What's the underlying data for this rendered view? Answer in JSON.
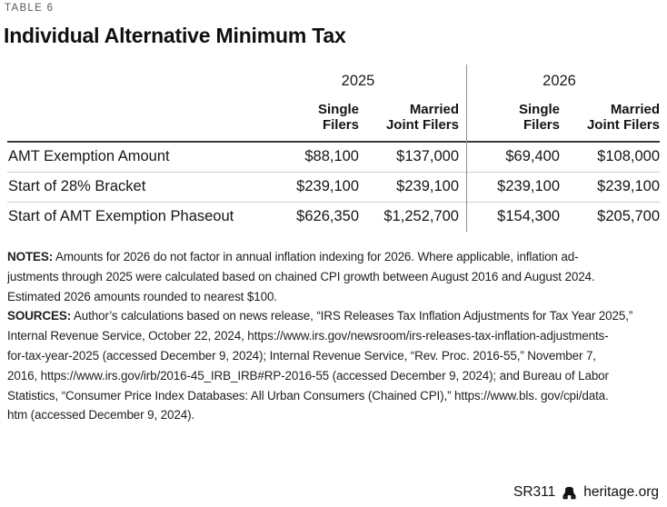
{
  "header": {
    "eyebrow": "TABLE 6",
    "title": "Individual Alternative Minimum Tax"
  },
  "table": {
    "years": [
      "2025",
      "2026"
    ],
    "sub_headers": [
      "Single\nFilers",
      "Married\nJoint Filers",
      "Single\nFilers",
      "Married\nJoint Filers"
    ],
    "rows": [
      {
        "label": "AMT Exemption Amount",
        "values": [
          "$88,100",
          "$137,000",
          "$69,400",
          "$108,000"
        ]
      },
      {
        "label": "Start of 28% Bracket",
        "values": [
          "$239,100",
          "$239,100",
          "$239,100",
          "$239,100"
        ]
      },
      {
        "label": "Start of AMT Exemption Phaseout",
        "values": [
          "$626,350",
          "$1,252,700",
          "$154,300",
          "$205,700"
        ]
      }
    ]
  },
  "chart_data": {
    "type": "table",
    "title": "Individual Alternative Minimum Tax",
    "columns": [
      "2025 Single Filers",
      "2025 Married Joint Filers",
      "2026 Single Filers",
      "2026 Married Joint Filers"
    ],
    "rows": [
      {
        "label": "AMT Exemption Amount",
        "values": [
          88100,
          137000,
          69400,
          108000
        ]
      },
      {
        "label": "Start of 28% Bracket",
        "values": [
          239100,
          239100,
          239100,
          239100
        ]
      },
      {
        "label": "Start of AMT Exemption Phaseout",
        "values": [
          626350,
          1252700,
          154300,
          205700
        ]
      }
    ]
  },
  "notes": {
    "label": "NOTES:",
    "lines": [
      "Amounts for 2026 do not factor in annual inflation indexing for 2026. Where applicable, inflation ad-",
      "justments through 2025 were calculated based on chained CPI growth between August 2016 and August 2024.",
      "Estimated 2026 amounts rounded to nearest $100."
    ]
  },
  "sources": {
    "label": "SOURCES:",
    "lines": [
      "Author’s calculations based on news release, “IRS Releases Tax Inflation Adjustments for Tax Year 2025,”",
      "Internal Revenue Service, October 22, 2024, https://www.irs.gov/newsroom/irs-releases-tax-inflation-adjustments-",
      "for-tax-year-2025 (accessed December 9, 2024); Internal Revenue Service, “Rev. Proc. 2016-55,” November 7,",
      "2016, https://www.irs.gov/irb/2016-45_IRB_IRB#RP-2016-55 (accessed December 9, 2024); and Bureau of Labor",
      "Statistics, “Consumer Price Index Databases: All Urban Consumers (Chained CPI),” https://www.bls. gov/cpi/data.",
      "htm (accessed December 9, 2024)."
    ]
  },
  "footer": {
    "report_id": "SR311",
    "site": "heritage.org",
    "bell_icon": "liberty-bell-icon"
  },
  "colors": {
    "eyebrow_gray": "#59595b",
    "text_black": "#141414",
    "header_rule": "#3a3a3a",
    "row_rule": "#cfcfcf",
    "column_divider": "#8f8f8f"
  }
}
